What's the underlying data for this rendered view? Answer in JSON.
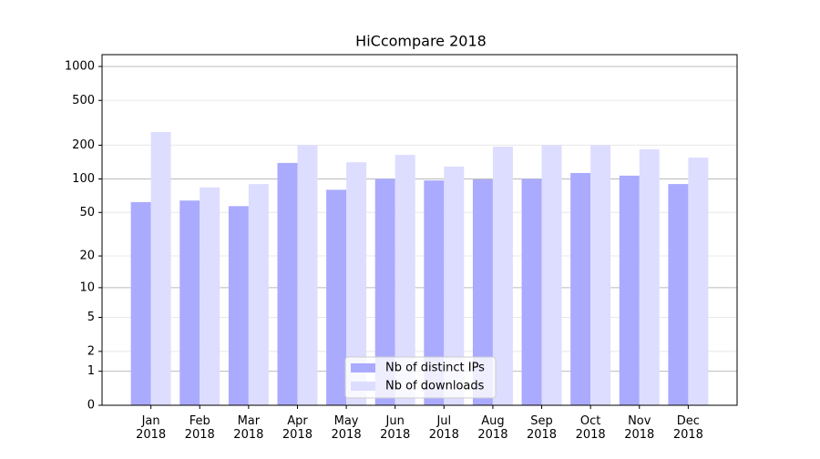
{
  "chart_data": {
    "type": "bar",
    "title": "HiCcompare 2018",
    "categories": [
      "Jan 2018",
      "Feb 2018",
      "Mar 2018",
      "Apr 2018",
      "May 2018",
      "Jun 2018",
      "Jul 2018",
      "Aug 2018",
      "Sep 2018",
      "Oct 2018",
      "Nov 2018",
      "Dec 2018"
    ],
    "series": [
      {
        "name": "Nb of distinct IPs",
        "color": "#aaaaff",
        "values": [
          62,
          64,
          57,
          139,
          80,
          100,
          97,
          99,
          100,
          113,
          107,
          90
        ]
      },
      {
        "name": "Nb of downloads",
        "color": "#ddddff",
        "values": [
          262,
          84,
          90,
          200,
          141,
          164,
          129,
          194,
          200,
          200,
          184,
          155
        ]
      }
    ],
    "yscale": "log1p",
    "ylim": [
      0,
      1273
    ],
    "yticks": [
      0,
      1,
      2,
      5,
      10,
      20,
      50,
      100,
      200,
      500,
      1000
    ],
    "grid": true,
    "legend": "lower center"
  }
}
